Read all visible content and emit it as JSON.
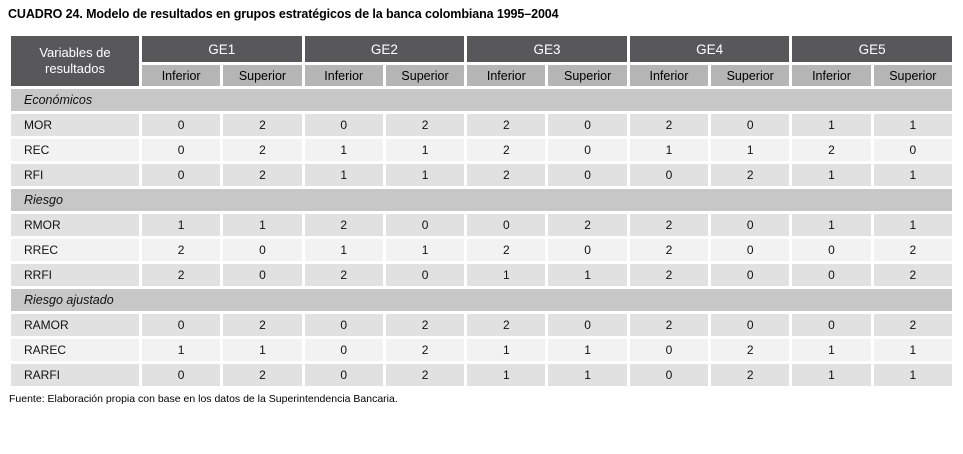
{
  "title": "CUADRO 24. Modelo de resultados en grupos estratégicos de la banca colombiana 1995–2004",
  "table": {
    "corner_header": "Variables de resultados",
    "groups": [
      "GE1",
      "GE2",
      "GE3",
      "GE4",
      "GE5"
    ],
    "subheaders": [
      "Inferior",
      "Superior"
    ],
    "sections": [
      {
        "label": "Económicos",
        "rows": [
          {
            "label": "MOR",
            "values": [
              0,
              2,
              0,
              2,
              2,
              0,
              2,
              0,
              1,
              1
            ]
          },
          {
            "label": "REC",
            "values": [
              0,
              2,
              1,
              1,
              2,
              0,
              1,
              1,
              2,
              0
            ]
          },
          {
            "label": "RFI",
            "values": [
              0,
              2,
              1,
              1,
              2,
              0,
              0,
              2,
              1,
              1
            ]
          }
        ]
      },
      {
        "label": "Riesgo",
        "rows": [
          {
            "label": "RMOR",
            "values": [
              1,
              1,
              2,
              0,
              0,
              2,
              2,
              0,
              1,
              1
            ]
          },
          {
            "label": "RREC",
            "values": [
              2,
              0,
              1,
              1,
              2,
              0,
              2,
              0,
              0,
              2
            ]
          },
          {
            "label": "RRFI",
            "values": [
              2,
              0,
              2,
              0,
              1,
              1,
              2,
              0,
              0,
              2
            ]
          }
        ]
      },
      {
        "label": "Riesgo ajustado",
        "rows": [
          {
            "label": "RAMOR",
            "values": [
              0,
              2,
              0,
              2,
              2,
              0,
              2,
              0,
              0,
              2
            ]
          },
          {
            "label": "RAREC",
            "values": [
              1,
              1,
              0,
              2,
              1,
              1,
              0,
              2,
              1,
              1
            ]
          },
          {
            "label": "RARFI",
            "values": [
              0,
              2,
              0,
              2,
              1,
              1,
              0,
              2,
              1,
              1
            ]
          }
        ]
      }
    ]
  },
  "footer": "Fuente: Elaboración propia con base en los datos de la Superintendencia Bancaria.",
  "colors": {
    "header_dark": "#58585a",
    "header_light": "#b5b5b5",
    "section_band": "#c7c7c7",
    "row_odd": "#e1e1e1",
    "row_even": "#f2f2f2"
  },
  "chart_data": {
    "type": "table",
    "title": "CUADRO 24. Modelo de resultados en grupos estratégicos de la banca colombiana 1995–2004",
    "columns": [
      "Variables de resultados",
      "GE1 Inferior",
      "GE1 Superior",
      "GE2 Inferior",
      "GE2 Superior",
      "GE3 Inferior",
      "GE3 Superior",
      "GE4 Inferior",
      "GE4 Superior",
      "GE5 Inferior",
      "GE5 Superior"
    ],
    "rows": [
      [
        "Económicos",
        "",
        "",
        "",
        "",
        "",
        "",
        "",
        "",
        "",
        ""
      ],
      [
        "MOR",
        0,
        2,
        0,
        2,
        2,
        0,
        2,
        0,
        1,
        1
      ],
      [
        "REC",
        0,
        2,
        1,
        1,
        2,
        0,
        1,
        1,
        2,
        0
      ],
      [
        "RFI",
        0,
        2,
        1,
        1,
        2,
        0,
        0,
        2,
        1,
        1
      ],
      [
        "Riesgo",
        "",
        "",
        "",
        "",
        "",
        "",
        "",
        "",
        "",
        ""
      ],
      [
        "RMOR",
        1,
        1,
        2,
        0,
        0,
        2,
        2,
        0,
        1,
        1
      ],
      [
        "RREC",
        2,
        0,
        1,
        1,
        2,
        0,
        2,
        0,
        0,
        2
      ],
      [
        "RRFI",
        2,
        0,
        2,
        0,
        1,
        1,
        2,
        0,
        0,
        2
      ],
      [
        "Riesgo ajustado",
        "",
        "",
        "",
        "",
        "",
        "",
        "",
        "",
        "",
        ""
      ],
      [
        "RAMOR",
        0,
        2,
        0,
        2,
        2,
        0,
        2,
        0,
        0,
        2
      ],
      [
        "RAREC",
        1,
        1,
        0,
        2,
        1,
        1,
        0,
        2,
        1,
        1
      ],
      [
        "RARFI",
        0,
        2,
        0,
        2,
        1,
        1,
        0,
        2,
        1,
        1
      ]
    ]
  }
}
